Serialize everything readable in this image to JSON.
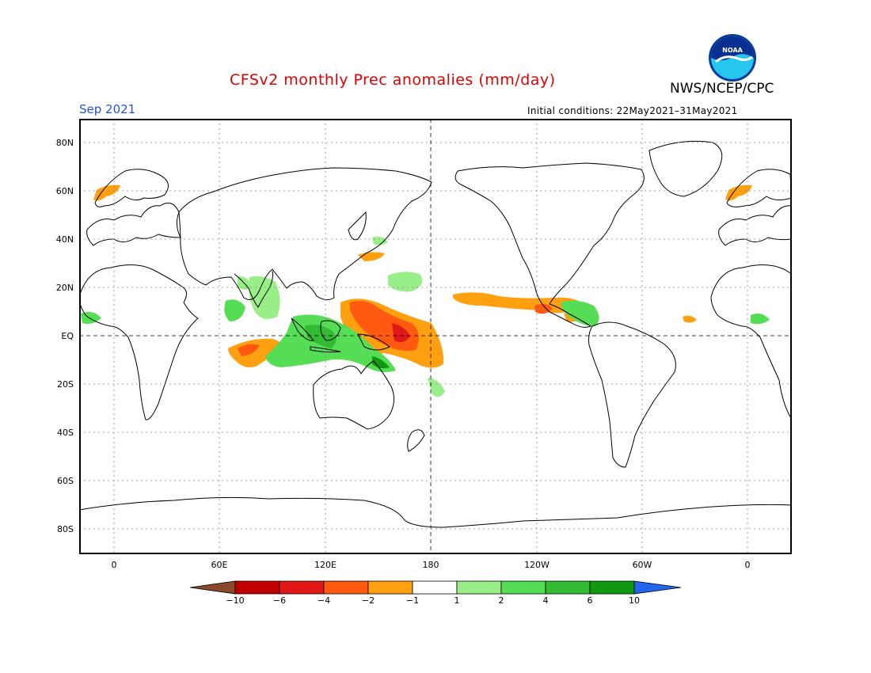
{
  "header": {
    "title": "CFSv2 monthly Prec anomalies (mm/day)",
    "agency": "NWS/NCEP/CPC",
    "logo_text": "NOAA",
    "month": "Sep 2021",
    "initial_conditions": "Initial conditions: 22May2021–31May2021"
  },
  "map": {
    "lat_labels": [
      "80N",
      "60N",
      "40N",
      "20N",
      "EQ",
      "20S",
      "40S",
      "60S",
      "80S"
    ],
    "lon_labels": [
      "0",
      "60E",
      "120E",
      "180",
      "120W",
      "60W",
      "0"
    ],
    "land_color": "#ffffff",
    "coast_color": "#000000",
    "grid_style": "dotted"
  },
  "colorbar": {
    "labels": [
      "−10",
      "−6",
      "−4",
      "−2",
      "−1",
      "1",
      "2",
      "4",
      "6",
      "10"
    ],
    "colors": [
      "#8b4a2b",
      "#c00000",
      "#e01818",
      "#ff5a10",
      "#ffa010",
      "#ffffff",
      "#99ee88",
      "#55dd55",
      "#33bb33",
      "#119911",
      "#2266ee"
    ]
  }
}
